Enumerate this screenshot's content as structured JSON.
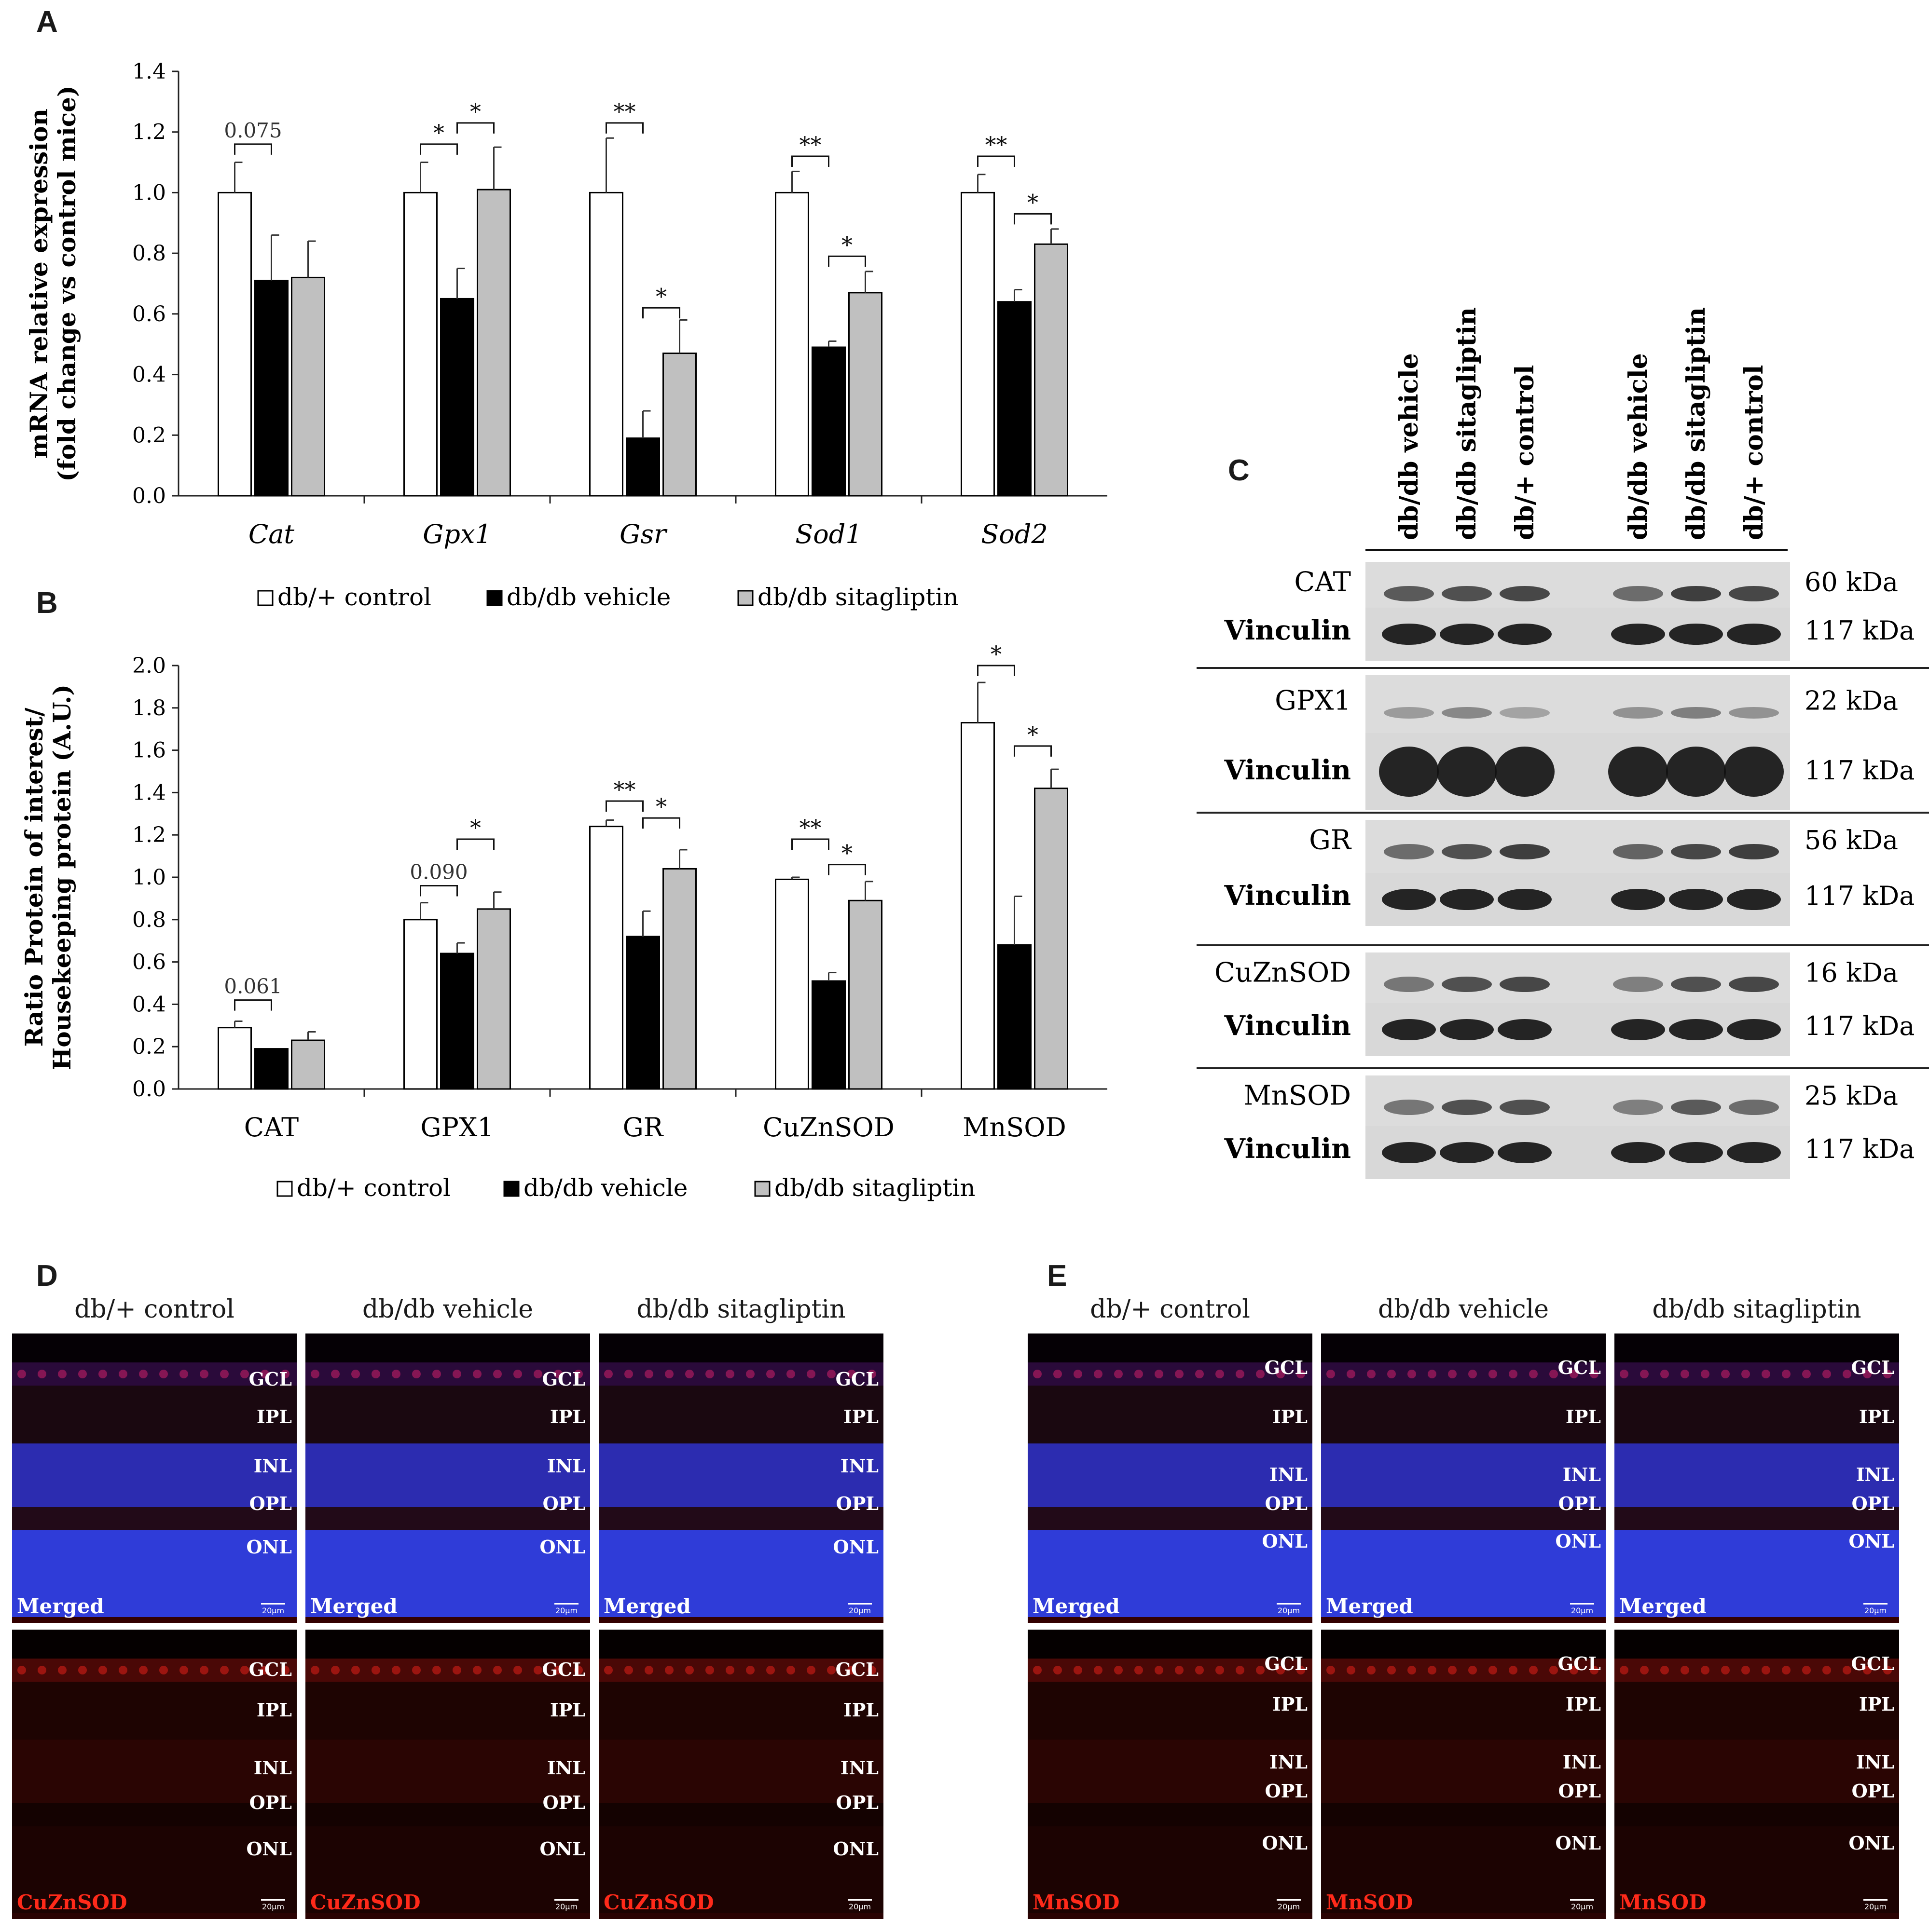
{
  "panels": {
    "A": "A",
    "B": "B",
    "C": "C",
    "D": "D",
    "E": "E"
  },
  "legend": [
    "db/+ control",
    "db/db vehicle",
    "db/db sitagliptin"
  ],
  "colors": {
    "control": "#ffffff",
    "vehicle": "#000000",
    "sitagliptin": "#c0c0c0",
    "scatter": "#000000",
    "grid": "#ffffff"
  },
  "chart_data": [
    {
      "id": "A",
      "type": "bar",
      "ylabel_lines": [
        "mRNA relative expression",
        "(fold change vs control mice)"
      ],
      "categories": [
        "Cat",
        "Gpx1",
        "Gsr",
        "Sod1",
        "Sod2"
      ],
      "ylim": [
        0,
        1.4
      ],
      "yticks": [
        "0.0",
        "0.2",
        "0.4",
        "0.6",
        "0.8",
        "1.0",
        "1.2",
        "1.4"
      ],
      "series": [
        {
          "name": "db/+ control",
          "values": [
            1.0,
            1.0,
            1.0,
            1.0,
            1.0
          ],
          "errors": [
            0.1,
            0.1,
            0.18,
            0.07,
            0.06
          ]
        },
        {
          "name": "db/db vehicle",
          "values": [
            0.71,
            0.65,
            0.19,
            0.49,
            0.64
          ],
          "errors": [
            0.15,
            0.1,
            0.09,
            0.02,
            0.04
          ]
        },
        {
          "name": "db/db sitagliptin",
          "values": [
            0.72,
            1.01,
            0.47,
            0.67,
            0.83
          ],
          "errors": [
            0.12,
            0.14,
            0.11,
            0.07,
            0.05
          ]
        }
      ],
      "annotations": [
        {
          "cat": 0,
          "from": 0,
          "to": 1,
          "y": 1.16,
          "label": "0.075",
          "p": true
        },
        {
          "cat": 1,
          "from": 0,
          "to": 1,
          "y": 1.16,
          "label": "*"
        },
        {
          "cat": 1,
          "from": 1,
          "to": 2,
          "y": 1.23,
          "label": "*"
        },
        {
          "cat": 2,
          "from": 0,
          "to": 1,
          "y": 1.23,
          "label": "**"
        },
        {
          "cat": 2,
          "from": 1,
          "to": 2,
          "y": 0.62,
          "label": "*"
        },
        {
          "cat": 3,
          "from": 0,
          "to": 1,
          "y": 1.12,
          "label": "**"
        },
        {
          "cat": 3,
          "from": 1,
          "to": 2,
          "y": 0.79,
          "label": "*"
        },
        {
          "cat": 4,
          "from": 0,
          "to": 1,
          "y": 1.12,
          "label": "**"
        },
        {
          "cat": 4,
          "from": 1,
          "to": 2,
          "y": 0.93,
          "label": "*"
        }
      ]
    },
    {
      "id": "B",
      "type": "bar",
      "ylabel_lines": [
        "Ratio Protein of interest/",
        "Housekeeping protein (A.U.)"
      ],
      "categories": [
        "CAT",
        "GPX1",
        "GR",
        "CuZnSOD",
        "MnSOD"
      ],
      "ylim": [
        0,
        2.0
      ],
      "yticks": [
        "0.0",
        "0.2",
        "0.4",
        "0.6",
        "0.8",
        "1.0",
        "1.2",
        "1.4",
        "1.6",
        "1.8",
        "2.0"
      ],
      "series": [
        {
          "name": "db/+ control",
          "values": [
            0.29,
            0.8,
            1.24,
            0.99,
            1.73
          ],
          "errors": [
            0.03,
            0.08,
            0.03,
            0.01,
            0.19
          ]
        },
        {
          "name": "db/db vehicle",
          "values": [
            0.19,
            0.64,
            0.72,
            0.51,
            0.68
          ],
          "errors": [
            0.0,
            0.05,
            0.12,
            0.04,
            0.23
          ]
        },
        {
          "name": "db/db sitagliptin",
          "values": [
            0.23,
            0.85,
            1.04,
            0.89,
            1.42
          ],
          "errors": [
            0.04,
            0.08,
            0.09,
            0.09,
            0.09
          ]
        }
      ],
      "annotations": [
        {
          "cat": 0,
          "from": 0,
          "to": 1,
          "y": 0.42,
          "label": "0.061",
          "p": true
        },
        {
          "cat": 1,
          "from": 0,
          "to": 1,
          "y": 0.96,
          "label": "0.090",
          "p": true
        },
        {
          "cat": 1,
          "from": 1,
          "to": 2,
          "y": 1.18,
          "label": "*"
        },
        {
          "cat": 2,
          "from": 0,
          "to": 1,
          "y": 1.36,
          "label": "**"
        },
        {
          "cat": 2,
          "from": 1,
          "to": 2,
          "y": 1.28,
          "label": "*"
        },
        {
          "cat": 3,
          "from": 0,
          "to": 1,
          "y": 1.18,
          "label": "**"
        },
        {
          "cat": 3,
          "from": 1,
          "to": 2,
          "y": 1.06,
          "label": "*"
        },
        {
          "cat": 4,
          "from": 0,
          "to": 1,
          "y": 2.0,
          "label": "*"
        },
        {
          "cat": 4,
          "from": 1,
          "to": 2,
          "y": 1.62,
          "label": "*"
        }
      ]
    }
  ],
  "blot": {
    "lane_labels": [
      "db/db vehicle",
      "db/db sitagliptin",
      "db/+ control",
      "db/db vehicle",
      "db/db sitagliptin",
      "db/+ control"
    ],
    "groups": [
      {
        "target": "CAT",
        "target_kda": "60 kDa",
        "loading": "Vinculin",
        "loading_kda": "117 kDa"
      },
      {
        "target": "GPX1",
        "target_kda": "22 kDa",
        "loading": "Vinculin",
        "loading_kda": "117 kDa"
      },
      {
        "target": "GR",
        "target_kda": "56 kDa",
        "loading": "Vinculin",
        "loading_kda": "117 kDa"
      },
      {
        "target": "CuZnSOD",
        "target_kda": "16 kDa",
        "loading": "Vinculin",
        "loading_kda": "117 kDa"
      },
      {
        "target": "MnSOD",
        "target_kda": "25 kDa",
        "loading": "Vinculin",
        "loading_kda": "117 kDa"
      }
    ]
  },
  "micrographs": {
    "D": {
      "groups": [
        "db/+ control",
        "db/db vehicle",
        "db/db sitagliptin"
      ],
      "top_tag": "Merged",
      "bottom_tag": "CuZnSOD",
      "layers": [
        "GCL",
        "IPL",
        "INL",
        "OPL",
        "ONL"
      ],
      "scale": "20µm"
    },
    "E": {
      "groups": [
        "db/+ control",
        "db/db vehicle",
        "db/db sitagliptin"
      ],
      "top_tag": "Merged",
      "bottom_tag": "MnSOD",
      "layers": [
        "GCL",
        "IPL",
        "INL",
        "OPL",
        "ONL"
      ],
      "scale": "20µm"
    }
  }
}
